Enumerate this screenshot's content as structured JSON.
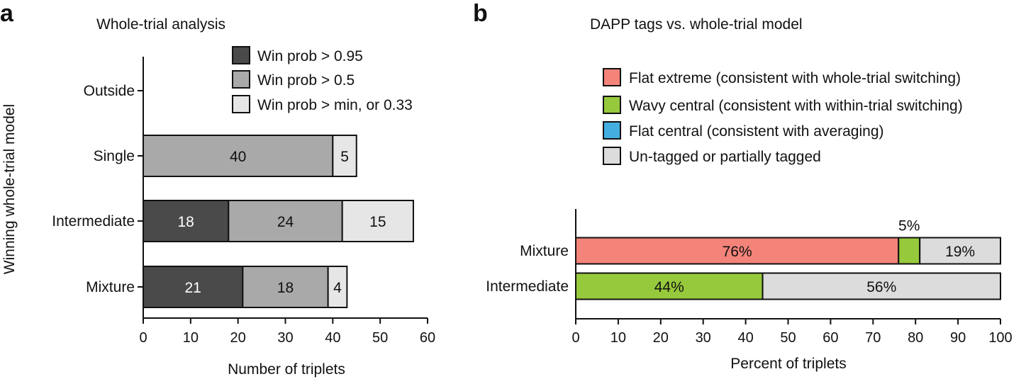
{
  "panel_a": {
    "letter": "a",
    "chart_data": {
      "type": "bar",
      "orientation": "horizontal",
      "stacked": true,
      "title": "Whole-trial analysis",
      "xlabel": "Number of triplets",
      "ylabel": "Winning whole-trial model",
      "categories": [
        "Outside",
        "Single",
        "Intermediate",
        "Mixture"
      ],
      "xlim": [
        0,
        60
      ],
      "xticks": [
        "0",
        "10",
        "20",
        "30",
        "40",
        "50",
        "60"
      ],
      "series": [
        {
          "name": "Win prob > 0.95",
          "color": "#4a4a4a",
          "label_color": "#ffffff",
          "values": [
            0,
            0,
            18,
            21
          ]
        },
        {
          "name": "Win prob > 0.5",
          "color": "#a9a9a9",
          "label_color": "#111111",
          "values": [
            0,
            40,
            24,
            18
          ]
        },
        {
          "name": "Win prob > min, or 0.33",
          "color": "#e6e6e6",
          "label_color": "#111111",
          "values": [
            0,
            5,
            15,
            4
          ]
        }
      ],
      "legend_position": "top-right"
    }
  },
  "panel_b": {
    "letter": "b",
    "chart_data": {
      "type": "bar",
      "orientation": "horizontal",
      "stacked": true,
      "title": "DAPP tags vs. whole-trial model",
      "xlabel": "Percent of triplets",
      "categories": [
        "Mixture",
        "Intermediate"
      ],
      "xlim": [
        0,
        100
      ],
      "xticks": [
        "0",
        "10",
        "20",
        "30",
        "40",
        "50",
        "60",
        "70",
        "80",
        "90",
        "100"
      ],
      "series": [
        {
          "name": "Flat extreme (consistent with whole-trial switching)",
          "color": "#f4837a",
          "values": [
            76,
            0
          ],
          "labels": [
            "76%",
            ""
          ]
        },
        {
          "name": "Wavy central (consistent with within-trial switching)",
          "color": "#97c93c",
          "values": [
            5,
            44
          ],
          "labels": [
            "5%",
            "44%"
          ]
        },
        {
          "name": "Flat central (consistent with averaging)",
          "color": "#45aee0",
          "values": [
            0,
            0
          ],
          "labels": [
            "",
            ""
          ]
        },
        {
          "name": "Un-tagged or partially tagged",
          "color": "#dcdcdc",
          "values": [
            19,
            56
          ],
          "labels": [
            "19%",
            "56%"
          ]
        }
      ],
      "legend_position": "top"
    }
  }
}
